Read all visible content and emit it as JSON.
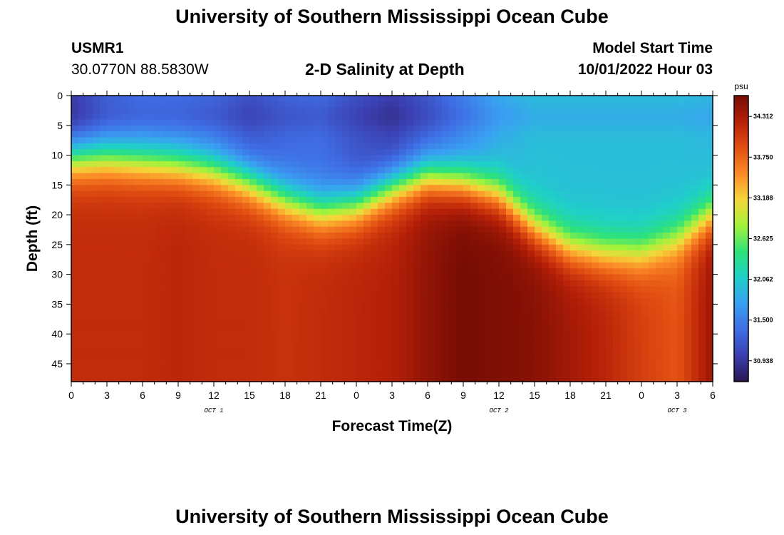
{
  "header": {
    "title": "University of Southern Mississippi Ocean Cube",
    "station_id": "USMR1",
    "station_coords": "30.0770N  88.5830W",
    "subtitle": "2-D Salinity at Depth",
    "start_label": "Model Start Time",
    "start_value": "10/01/2022 Hour 03"
  },
  "footer": {
    "title": "University of Southern Mississippi Ocean Cube"
  },
  "chart_data": {
    "type": "heatmap",
    "title": "2-D Salinity at Depth",
    "xlabel": "Forecast Time(Z)",
    "ylabel": "Depth (ft)",
    "x_hours": [
      0,
      54
    ],
    "x_tick_labels": [
      "0",
      "3",
      "6",
      "9",
      "12",
      "15",
      "18",
      "21",
      "0",
      "3",
      "6",
      "9",
      "12",
      "15",
      "18",
      "21",
      "0",
      "3",
      "6"
    ],
    "day_labels": [
      {
        "text": "OCT 1",
        "hour": 12
      },
      {
        "text": "OCT 2",
        "hour": 36
      },
      {
        "text": "OCT 3",
        "hour": 51
      }
    ],
    "ylim": [
      0,
      48
    ],
    "y_ticks": [
      0,
      5,
      10,
      15,
      20,
      25,
      30,
      35,
      40,
      45
    ],
    "colorbar": {
      "unit": "psu",
      "range": [
        30.65,
        34.6
      ],
      "tick_values": [
        34.312,
        33.75,
        33.188,
        32.625,
        32.062,
        31.5,
        30.938
      ],
      "tick_labels": [
        "34.312",
        "33.750",
        "33.188",
        "32.625",
        "32.062",
        "31.500",
        "30.938"
      ],
      "stops": [
        "#2a1650",
        "#3b3fb0",
        "#3f6ee4",
        "#3aa0f2",
        "#1fd0c8",
        "#2de27a",
        "#a3f23b",
        "#f6d63a",
        "#fb8a26",
        "#e24f12",
        "#b62008",
        "#760c04"
      ]
    },
    "profile_hours": [
      0,
      3,
      6,
      9,
      12,
      15,
      18,
      21,
      24,
      27,
      30,
      33,
      36,
      39,
      42,
      45,
      48,
      51,
      54
    ],
    "mixed_layer_ft": [
      10.5,
      10.5,
      11,
      11.5,
      12.5,
      14.5,
      17.5,
      19.5,
      18.5,
      15.5,
      13.5,
      14.5,
      16.5,
      22,
      25.5,
      26.5,
      26.5,
      24,
      20
    ],
    "surface_psu": [
      30.95,
      31.25,
      31.35,
      31.35,
      31.3,
      31.15,
      31.3,
      31.35,
      31.15,
      31.0,
      31.2,
      31.5,
      31.8,
      31.95,
      31.95,
      31.95,
      31.95,
      31.95,
      31.9
    ],
    "bottom_psu": [
      34.15,
      34.15,
      34.15,
      34.2,
      34.15,
      34.15,
      34.1,
      34.15,
      34.2,
      34.25,
      34.45,
      34.6,
      34.55,
      34.5,
      34.35,
      34.2,
      34.0,
      33.85,
      34.4
    ]
  }
}
